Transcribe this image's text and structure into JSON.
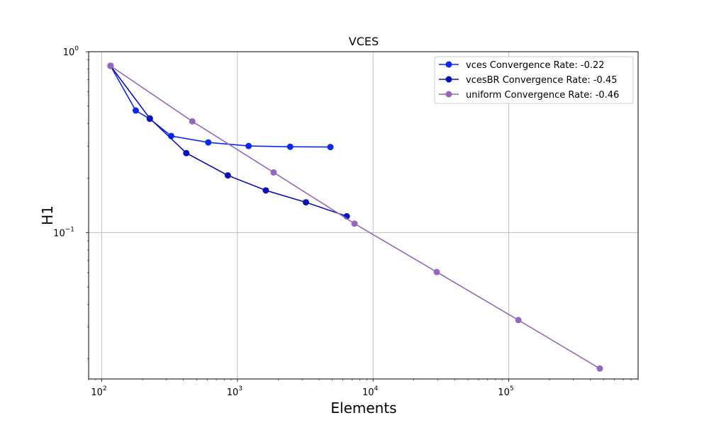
{
  "chart_data": {
    "type": "line",
    "title": "VCES",
    "xlabel": "Elements",
    "ylabel": "H1",
    "xscale": "log",
    "yscale": "log",
    "xlim": [
      80,
      900000
    ],
    "ylim": [
      0.0155,
      1.0
    ],
    "grid": true,
    "legend_position": "top-right",
    "x_tick_labels": [
      {
        "base": "10",
        "exp": "2",
        "value": 100
      },
      {
        "base": "10",
        "exp": "3",
        "value": 1000
      },
      {
        "base": "10",
        "exp": "4",
        "value": 10000
      },
      {
        "base": "10",
        "exp": "5",
        "value": 100000
      }
    ],
    "y_tick_labels": [
      {
        "base": "10",
        "exp": "0",
        "value": 1.0
      },
      {
        "base": "10",
        "exp": "−1",
        "value": 0.1
      }
    ],
    "series": [
      {
        "name": "vces Convergence Rate: -0.22",
        "color": "#0a29ee",
        "x": [
          116,
          178,
          226,
          325,
          610,
          1210,
          2450,
          4850
        ],
        "y": [
          0.835,
          0.473,
          0.425,
          0.342,
          0.315,
          0.301,
          0.298,
          0.297
        ]
      },
      {
        "name": "vcesBR Convergence Rate: -0.45",
        "color": "#0a12b7",
        "x": [
          116,
          226,
          420,
          850,
          1620,
          3200,
          6400
        ],
        "y": [
          0.835,
          0.428,
          0.275,
          0.207,
          0.171,
          0.147,
          0.123
        ]
      },
      {
        "name": "uniform Convergence Rate: -0.46",
        "color": "#9467bd",
        "x": [
          116,
          465,
          1850,
          7300,
          29500,
          118000,
          470000
        ],
        "y": [
          0.835,
          0.412,
          0.215,
          0.112,
          0.0605,
          0.0328,
          0.0177
        ]
      }
    ]
  }
}
